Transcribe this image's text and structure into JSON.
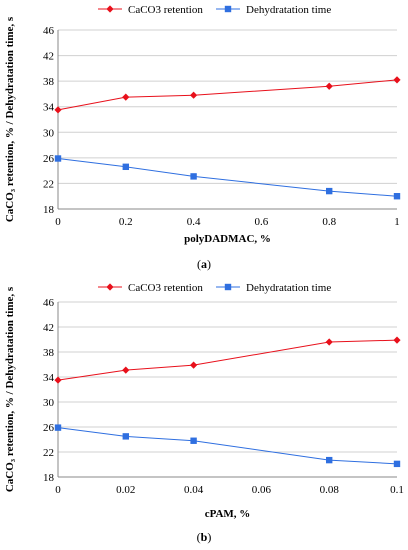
{
  "chart_data": [
    {
      "type": "line",
      "xlabel": "polyDADMAC, %",
      "ylabel": "CaCO₃ retention, % / Dehydratation time, s",
      "x": [
        0,
        0.2,
        0.4,
        0.8,
        1
      ],
      "xlim": [
        0,
        1
      ],
      "xticks": [
        "0",
        "0.2",
        "0.4",
        "0.6",
        "0.8",
        "1"
      ],
      "ylim": [
        18,
        46
      ],
      "yticks": [
        "18",
        "22",
        "26",
        "30",
        "34",
        "38",
        "42",
        "46"
      ],
      "grid": "horizontal",
      "legend_position": "top",
      "caption": "a",
      "series": [
        {
          "name": "CaCO3 retention",
          "marker": "diamond",
          "color": "#e8101b",
          "values": [
            33.5,
            35.5,
            35.8,
            37.2,
            38.2
          ]
        },
        {
          "name": "Dehydratation time",
          "marker": "square",
          "color": "#2f6fe0",
          "values": [
            25.9,
            24.6,
            23.1,
            20.8,
            20.0
          ]
        }
      ]
    },
    {
      "type": "line",
      "xlabel": "cPAM, %",
      "ylabel": "CaCO₃ retention, % / Dehydratation time, s",
      "x": [
        0,
        0.02,
        0.04,
        0.08,
        0.1
      ],
      "xlim": [
        0,
        0.1
      ],
      "xticks": [
        "0",
        "0.02",
        "0.04",
        "0.06",
        "0.08",
        "0.1"
      ],
      "ylim": [
        18,
        46
      ],
      "yticks": [
        "18",
        "22",
        "26",
        "30",
        "34",
        "38",
        "42",
        "46"
      ],
      "grid": "horizontal",
      "legend_position": "top",
      "caption": "b",
      "series": [
        {
          "name": "CaCO3 retention",
          "marker": "diamond",
          "color": "#e8101b",
          "values": [
            33.5,
            35.1,
            35.9,
            39.6,
            39.9
          ]
        },
        {
          "name": "Dehydratation time",
          "marker": "square",
          "color": "#2f6fe0",
          "values": [
            25.9,
            24.5,
            23.8,
            20.7,
            20.1
          ]
        }
      ]
    }
  ]
}
